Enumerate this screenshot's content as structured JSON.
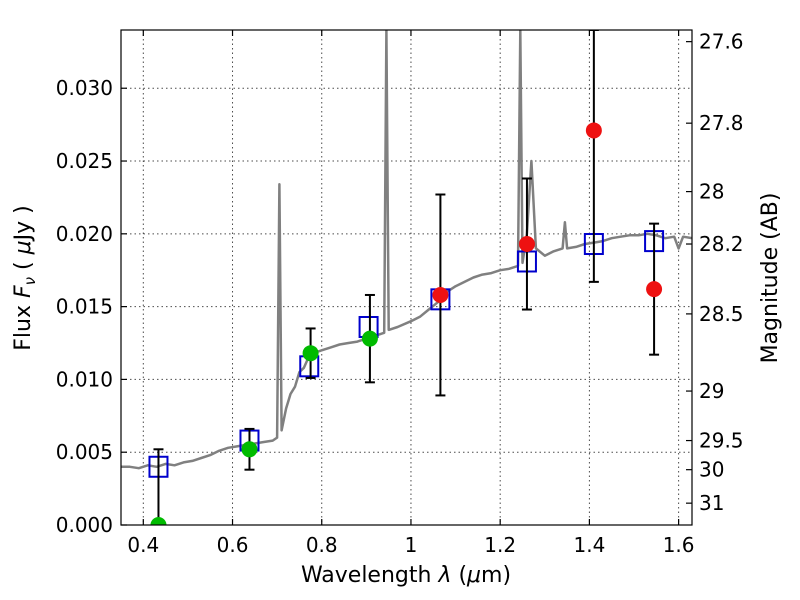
{
  "chart_data": {
    "type": "scatter",
    "xlabel_prefix": "Wavelength  ",
    "xlabel_symbol": "λ",
    "xlabel_unit_open": " (",
    "xlabel_unit_mu": "μ",
    "xlabel_unit_close": "m)",
    "ylabel_prefix": "Flux  ",
    "ylabel_symbol": "F",
    "ylabel_subscript": "ν",
    "ylabel_unit_open": "  ( ",
    "ylabel_unit_mu": "μ",
    "ylabel_unit_close": "Jy )",
    "y2label": "Magnitude (AB)",
    "xlim": [
      0.35,
      1.63
    ],
    "ylim": [
      0.0,
      0.034
    ],
    "grid": true,
    "x_ticks": [
      {
        "value": 0.4,
        "label": "0.4"
      },
      {
        "value": 0.6,
        "label": "0.6"
      },
      {
        "value": 0.8,
        "label": "0.8"
      },
      {
        "value": 1.0,
        "label": "1"
      },
      {
        "value": 1.2,
        "label": "1.2"
      },
      {
        "value": 1.4,
        "label": "1.4"
      },
      {
        "value": 1.6,
        "label": "1.6"
      }
    ],
    "y_ticks": [
      {
        "value": 0.0,
        "label": "0.000"
      },
      {
        "value": 0.005,
        "label": "0.005"
      },
      {
        "value": 0.01,
        "label": "0.010"
      },
      {
        "value": 0.015,
        "label": "0.015"
      },
      {
        "value": 0.02,
        "label": "0.020"
      },
      {
        "value": 0.025,
        "label": "0.025"
      },
      {
        "value": 0.03,
        "label": "0.030"
      }
    ],
    "y2_ticks": [
      {
        "flux": 0.0332,
        "label": "27.6"
      },
      {
        "flux": 0.0276,
        "label": "27.8"
      },
      {
        "flux": 0.0229,
        "label": "28"
      },
      {
        "flux": 0.0193,
        "label": "28.2"
      },
      {
        "flux": 0.0145,
        "label": "28.5"
      },
      {
        "flux": 0.0092,
        "label": "29"
      },
      {
        "flux": 0.0058,
        "label": "29.5"
      },
      {
        "flux": 0.0038,
        "label": "30"
      },
      {
        "flux": 0.0015,
        "label": "31"
      }
    ],
    "series": [
      {
        "kind": "line",
        "color": "#808080",
        "points": [
          [
            0.35,
            0.004
          ],
          [
            0.37,
            0.004
          ],
          [
            0.39,
            0.0039
          ],
          [
            0.41,
            0.0041
          ],
          [
            0.43,
            0.004
          ],
          [
            0.45,
            0.0042
          ],
          [
            0.47,
            0.0041
          ],
          [
            0.49,
            0.0043
          ],
          [
            0.51,
            0.0044
          ],
          [
            0.53,
            0.0046
          ],
          [
            0.55,
            0.0048
          ],
          [
            0.57,
            0.0051
          ],
          [
            0.59,
            0.0053
          ],
          [
            0.61,
            0.0054
          ],
          [
            0.63,
            0.0055
          ],
          [
            0.65,
            0.0056
          ],
          [
            0.67,
            0.0057
          ],
          [
            0.69,
            0.0058
          ],
          [
            0.7,
            0.006
          ],
          [
            0.705,
            0.0234
          ],
          [
            0.71,
            0.0065
          ],
          [
            0.72,
            0.008
          ],
          [
            0.73,
            0.009
          ],
          [
            0.74,
            0.0095
          ],
          [
            0.75,
            0.0105
          ],
          [
            0.76,
            0.0108
          ],
          [
            0.77,
            0.0115
          ],
          [
            0.78,
            0.0117
          ],
          [
            0.79,
            0.0119
          ],
          [
            0.8,
            0.012
          ],
          [
            0.82,
            0.0122
          ],
          [
            0.84,
            0.0124
          ],
          [
            0.86,
            0.0125
          ],
          [
            0.88,
            0.0126
          ],
          [
            0.9,
            0.0128
          ],
          [
            0.92,
            0.013
          ],
          [
            0.94,
            0.0132
          ],
          [
            0.945,
            0.034
          ],
          [
            0.95,
            0.0134
          ],
          [
            0.97,
            0.0136
          ],
          [
            1.0,
            0.014
          ],
          [
            1.02,
            0.0143
          ],
          [
            1.04,
            0.0148
          ],
          [
            1.06,
            0.0153
          ],
          [
            1.08,
            0.016
          ],
          [
            1.1,
            0.0164
          ],
          [
            1.12,
            0.0167
          ],
          [
            1.14,
            0.017
          ],
          [
            1.16,
            0.0172
          ],
          [
            1.18,
            0.0173
          ],
          [
            1.2,
            0.0175
          ],
          [
            1.22,
            0.0176
          ],
          [
            1.24,
            0.0178
          ],
          [
            1.245,
            0.034
          ],
          [
            1.25,
            0.018
          ],
          [
            1.26,
            0.02
          ],
          [
            1.27,
            0.025
          ],
          [
            1.28,
            0.019
          ],
          [
            1.3,
            0.0185
          ],
          [
            1.32,
            0.0188
          ],
          [
            1.34,
            0.019
          ],
          [
            1.345,
            0.0208
          ],
          [
            1.35,
            0.019
          ],
          [
            1.37,
            0.0191
          ],
          [
            1.39,
            0.0193
          ],
          [
            1.41,
            0.0194
          ],
          [
            1.43,
            0.0195
          ],
          [
            1.45,
            0.0197
          ],
          [
            1.47,
            0.0198
          ],
          [
            1.49,
            0.0199
          ],
          [
            1.51,
            0.0199
          ],
          [
            1.53,
            0.02
          ],
          [
            1.55,
            0.0199
          ],
          [
            1.57,
            0.0197
          ],
          [
            1.59,
            0.0198
          ],
          [
            1.6,
            0.019
          ],
          [
            1.61,
            0.0198
          ],
          [
            1.63,
            0.0197
          ]
        ]
      },
      {
        "kind": "open-square",
        "color": "#0000cc",
        "points": [
          [
            0.434,
            0.004
          ],
          [
            0.638,
            0.0058
          ],
          [
            0.772,
            0.0109
          ],
          [
            0.905,
            0.0136
          ],
          [
            1.066,
            0.0155
          ],
          [
            1.26,
            0.0181
          ],
          [
            1.41,
            0.0193
          ],
          [
            1.545,
            0.0195
          ]
        ]
      },
      {
        "kind": "filled-circle",
        "color": "#00bb00",
        "points": [
          [
            0.434,
            0.0,
            0.0052
          ],
          [
            0.638,
            0.0052,
            0.0014
          ],
          [
            0.775,
            0.0118,
            0.0017
          ],
          [
            0.908,
            0.0128,
            0.003
          ]
        ]
      },
      {
        "kind": "filled-circle",
        "color": "#ee1111",
        "points": [
          [
            1.066,
            0.0158,
            0.0069
          ],
          [
            1.26,
            0.0193,
            0.0045
          ],
          [
            1.41,
            0.0271,
            0.0104
          ],
          [
            1.545,
            0.0162,
            0.0045
          ]
        ]
      }
    ]
  }
}
